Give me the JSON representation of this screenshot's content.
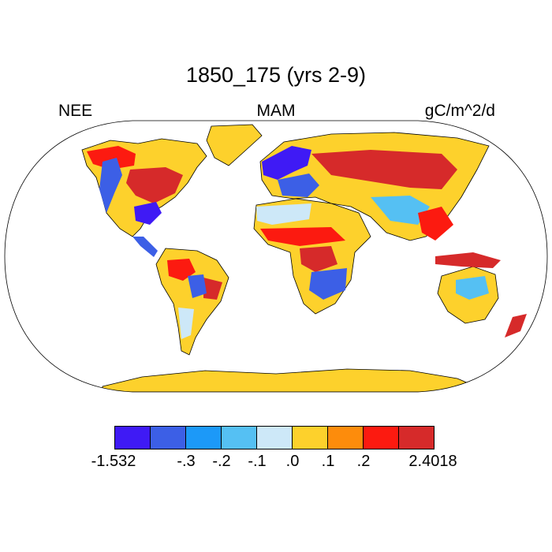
{
  "title": "1850_175 (yrs 2-9)",
  "left_label": "NEE",
  "center_label": "MAM",
  "right_label": "gC/m^2/d",
  "colorbar": {
    "colors": [
      "#3f1af5",
      "#3c5fe6",
      "#1c99f8",
      "#55c0f3",
      "#cde8f8",
      "#fdd12c",
      "#fd8c0c",
      "#fc1a10",
      "#d62a2a"
    ],
    "labels": [
      "-1.532",
      "-.3",
      "-.2",
      "-.1",
      ".0",
      ".1",
      ".2",
      "2.4018"
    ]
  },
  "colors": {
    "land_neutral": "#fdd12c",
    "outline": "#000000",
    "ocean": "#ffffff"
  }
}
